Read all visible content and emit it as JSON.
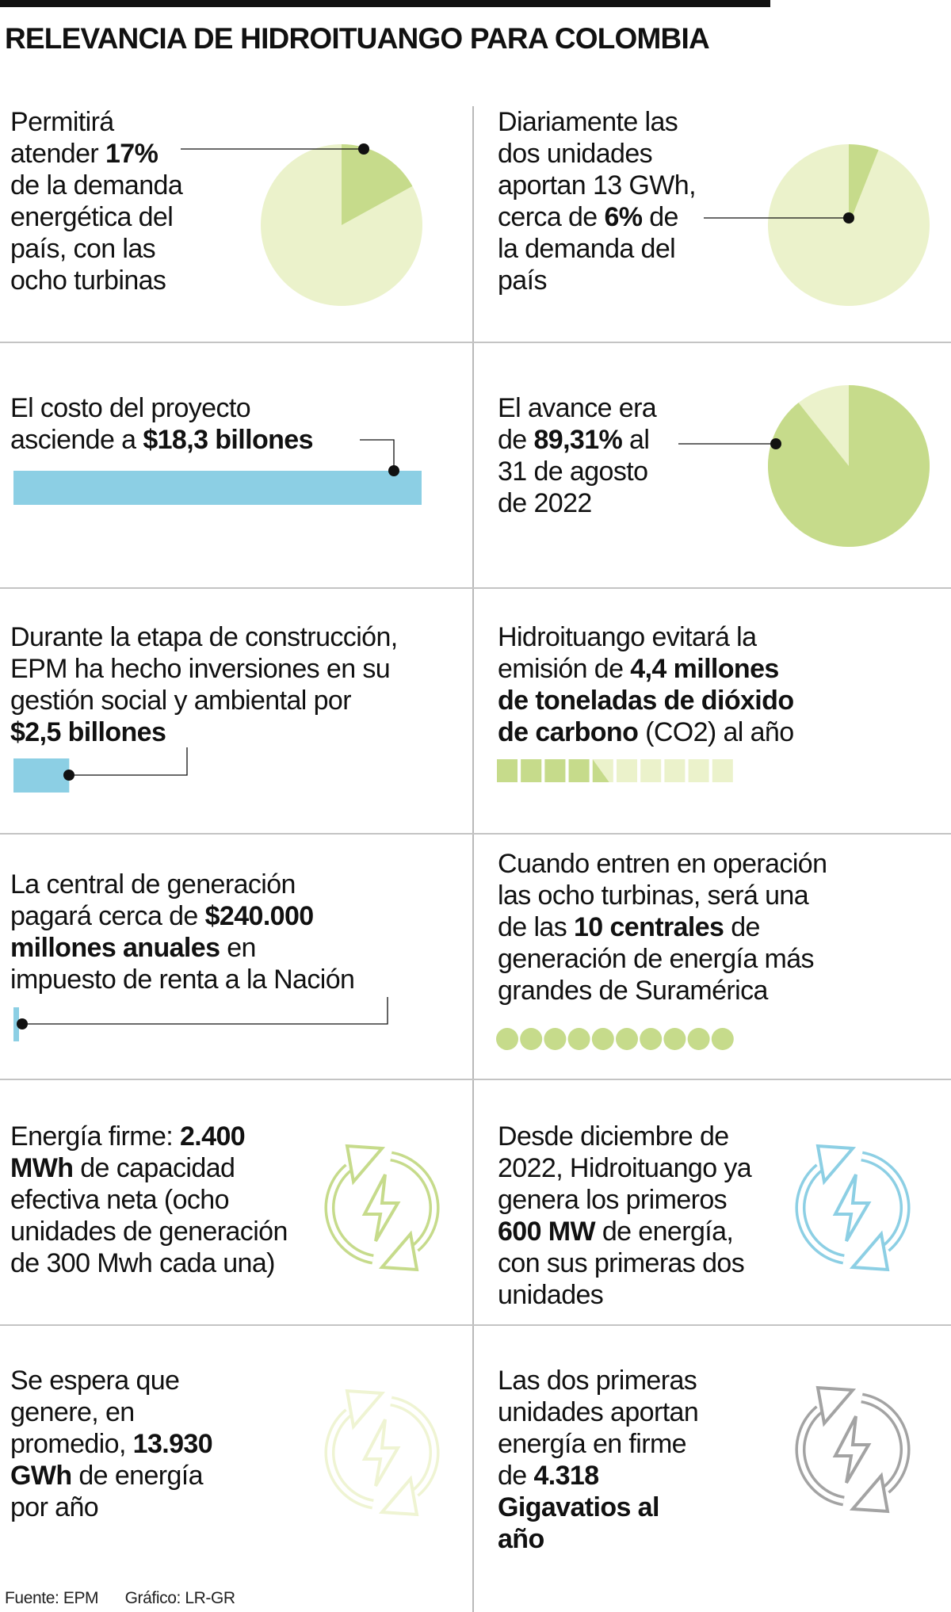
{
  "title": "RELEVANCIA DE HIDROITUANGO PARA COLOMBIA",
  "colors": {
    "green": "#c6db8b",
    "green_light": "#ebf2cb",
    "green_faint": "#eff4d3",
    "blue": "#8ccfe4",
    "gray": "#a3a3a3",
    "ink": "#111111"
  },
  "cells": [
    {
      "id": "demand-17",
      "lines": [
        [
          {
            "t": "Permitirá"
          }
        ],
        [
          {
            "t": "atender "
          },
          {
            "t": "17%",
            "b": true
          }
        ],
        [
          {
            "t": "de la demanda"
          }
        ],
        [
          {
            "t": "energética del"
          }
        ],
        [
          {
            "t": "país, con las"
          }
        ],
        [
          {
            "t": "ocho turbinas"
          }
        ]
      ],
      "graphic": {
        "type": "pie",
        "percent": 17
      }
    },
    {
      "id": "daily-6",
      "lines": [
        [
          {
            "t": "Diariamente las"
          }
        ],
        [
          {
            "t": "dos unidades"
          }
        ],
        [
          {
            "t": "aportan 13 GWh,"
          }
        ],
        [
          {
            "t": "cerca de "
          },
          {
            "t": "6%",
            "b": true
          },
          {
            "t": " de"
          }
        ],
        [
          {
            "t": "la demanda del"
          }
        ],
        [
          {
            "t": "país"
          }
        ]
      ],
      "graphic": {
        "type": "pie",
        "percent": 6
      }
    },
    {
      "id": "cost",
      "lines": [
        [
          {
            "t": "El costo del proyecto"
          }
        ],
        [
          {
            "t": "asciende a "
          },
          {
            "t": "$18,3 billones",
            "b": true
          }
        ]
      ],
      "graphic": {
        "type": "bar",
        "value_billions": 18.3
      }
    },
    {
      "id": "progress",
      "lines": [
        [
          {
            "t": "El avance era"
          }
        ],
        [
          {
            "t": "de "
          },
          {
            "t": "89,31%",
            "b": true
          },
          {
            "t": " al"
          }
        ],
        [
          {
            "t": "31 de agosto"
          }
        ],
        [
          {
            "t": "de 2022"
          }
        ]
      ],
      "graphic": {
        "type": "pie",
        "percent": 89.31
      }
    },
    {
      "id": "social",
      "lines": [
        [
          {
            "t": "Durante la etapa de construcción,"
          }
        ],
        [
          {
            "t": "EPM ha hecho inversiones en su"
          }
        ],
        [
          {
            "t": "gestión social y ambiental por"
          }
        ],
        [
          {
            "t": "$2,5 billones",
            "b": true
          }
        ]
      ],
      "graphic": {
        "type": "bar",
        "value_billions": 2.5
      }
    },
    {
      "id": "co2",
      "lines": [
        [
          {
            "t": "Hidroituango evitará la"
          }
        ],
        [
          {
            "t": "emisión de "
          },
          {
            "t": "4,4 millones",
            "b": true
          }
        ],
        [
          {
            "t": "de toneladas de dióxido",
            "b": true
          }
        ],
        [
          {
            "t": "de carbono",
            "b": true
          },
          {
            "t": " (CO2) al año"
          }
        ]
      ],
      "graphic": {
        "type": "squares",
        "value": 4.4,
        "total": 10
      }
    },
    {
      "id": "tax",
      "lines": [
        [
          {
            "t": "La central de generación"
          }
        ],
        [
          {
            "t": "pagará cerca de "
          },
          {
            "t": "$240.000",
            "b": true
          }
        ],
        [
          {
            "t": "millones anuales",
            "b": true
          },
          {
            "t": " en"
          }
        ],
        [
          {
            "t": "impuesto de renta a la Nación"
          }
        ]
      ],
      "graphic": {
        "type": "bar",
        "value_billions": 0.24
      }
    },
    {
      "id": "top10",
      "lines": [
        [
          {
            "t": "Cuando entren en operación"
          }
        ],
        [
          {
            "t": "las ocho turbinas, será una"
          }
        ],
        [
          {
            "t": "de las "
          },
          {
            "t": "10 centrales",
            "b": true
          },
          {
            "t": " de"
          }
        ],
        [
          {
            "t": "generación de energía más"
          }
        ],
        [
          {
            "t": "grandes de Suramérica"
          }
        ]
      ],
      "graphic": {
        "type": "dots",
        "count": 10
      }
    },
    {
      "id": "firm",
      "lines": [
        [
          {
            "t": "Energía firme: "
          },
          {
            "t": "2.400",
            "b": true
          }
        ],
        [
          {
            "t": "MWh",
            "b": true
          },
          {
            "t": " de capacidad"
          }
        ],
        [
          {
            "t": "efectiva neta (ocho"
          }
        ],
        [
          {
            "t": "unidades de generación"
          }
        ],
        [
          {
            "t": "de 300 Mwh cada una)"
          }
        ]
      ],
      "graphic": {
        "type": "icon",
        "color": "green"
      }
    },
    {
      "id": "since",
      "lines": [
        [
          {
            "t": "Desde diciembre de"
          }
        ],
        [
          {
            "t": "2022, Hidroituango ya"
          }
        ],
        [
          {
            "t": "genera los primeros"
          }
        ],
        [
          {
            "t": "600 MW",
            "b": true
          },
          {
            "t": " de energía,"
          }
        ],
        [
          {
            "t": "con sus primeras dos"
          }
        ],
        [
          {
            "t": "unidades"
          }
        ]
      ],
      "graphic": {
        "type": "icon",
        "color": "blue"
      }
    },
    {
      "id": "expected",
      "lines": [
        [
          {
            "t": "Se espera que"
          }
        ],
        [
          {
            "t": "genere, en"
          }
        ],
        [
          {
            "t": "promedio, "
          },
          {
            "t": "13.930",
            "b": true
          }
        ],
        [
          {
            "t": "GWh",
            "b": true
          },
          {
            "t": " de energía"
          }
        ],
        [
          {
            "t": "por año"
          }
        ]
      ],
      "graphic": {
        "type": "icon",
        "color": "green_faint"
      }
    },
    {
      "id": "first-two",
      "lines": [
        [
          {
            "t": "Las dos primeras"
          }
        ],
        [
          {
            "t": "unidades aportan"
          }
        ],
        [
          {
            "t": "energía en firme"
          }
        ],
        [
          {
            "t": "de "
          },
          {
            "t": "4.318",
            "b": true
          }
        ],
        [
          {
            "t": "Gigavatios al",
            "b": true
          }
        ],
        [
          {
            "t": "año",
            "b": true
          }
        ]
      ],
      "graphic": {
        "type": "icon",
        "color": "gray"
      }
    }
  ],
  "footer": {
    "source": "Fuente: EPM",
    "credit": "Gráfico: LR-GR"
  }
}
